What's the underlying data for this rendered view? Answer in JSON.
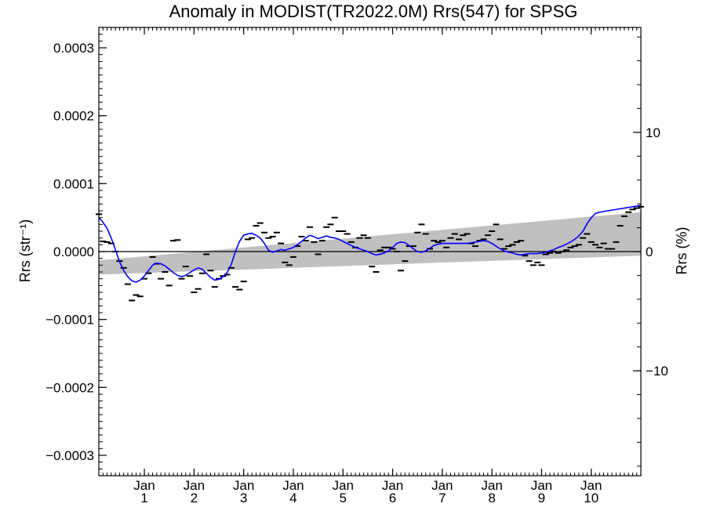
{
  "chart_data": {
    "type": "line",
    "title": "Anomaly in MODIST(TR2022.0M) Rrs(547) for SPSG",
    "ylabel_left": "Rrs (str⁻¹)",
    "ylabel_right": "Rrs (%)",
    "ylim_left": [
      -0.00033,
      0.00033
    ],
    "ylim_right": [
      -18.8,
      18.8
    ],
    "xlim_months": [
      0,
      131
    ],
    "y_ticks_left": [
      {
        "value": 0.0003,
        "label": "0.0003"
      },
      {
        "value": 0.0002,
        "label": "0.0002"
      },
      {
        "value": 0.0001,
        "label": "0.0001"
      },
      {
        "value": 0.0,
        "label": "0.0000"
      },
      {
        "value": -0.0001,
        "label": "−0.0001"
      },
      {
        "value": -0.0002,
        "label": "−0.0002"
      },
      {
        "value": -0.0003,
        "label": "−0.0003"
      }
    ],
    "y_ticks_right": [
      {
        "value": 10,
        "label": "10"
      },
      {
        "value": 0,
        "label": "0"
      },
      {
        "value": -10,
        "label": "−10"
      }
    ],
    "x_ticks": [
      {
        "month": 11,
        "top": "Jan",
        "bottom": "1"
      },
      {
        "month": 23,
        "top": "Jan",
        "bottom": "2"
      },
      {
        "month": 35,
        "top": "Jan",
        "bottom": "3"
      },
      {
        "month": 47,
        "top": "Jan",
        "bottom": "4"
      },
      {
        "month": 59,
        "top": "Jan",
        "bottom": "5"
      },
      {
        "month": 71,
        "top": "Jan",
        "bottom": "6"
      },
      {
        "month": 83,
        "top": "Jan",
        "bottom": "7"
      },
      {
        "month": 95,
        "top": "Jan",
        "bottom": "8"
      },
      {
        "month": 107,
        "top": "Jan",
        "bottom": "9"
      },
      {
        "month": 119,
        "top": "Jan",
        "bottom": "10"
      }
    ],
    "trend_band": {
      "x": [
        0,
        131
      ],
      "upper": [
        -1.3e-05,
        5.8e-05
      ],
      "lower": [
        -3.4e-05,
        -6e-06
      ]
    },
    "zero_line": 0,
    "smoothed_series": {
      "color": "#0000ff",
      "x": [
        0,
        1,
        2,
        3,
        4,
        5,
        6,
        7,
        8,
        9,
        10,
        11,
        12,
        13,
        14,
        15,
        16,
        17,
        18,
        19,
        20,
        21,
        22,
        23,
        24,
        25,
        26,
        27,
        28,
        29,
        30,
        31,
        32,
        33,
        34,
        35,
        36,
        37,
        38,
        39,
        40,
        41,
        42,
        43,
        44,
        45,
        46,
        47,
        48,
        49,
        50,
        51,
        52,
        53,
        54,
        55,
        56,
        57,
        58,
        59,
        60,
        61,
        62,
        63,
        64,
        65,
        66,
        67,
        68,
        69,
        70,
        71,
        72,
        73,
        74,
        75,
        76,
        77,
        78,
        79,
        80,
        81,
        82,
        83,
        84,
        85,
        86,
        87,
        88,
        89,
        90,
        91,
        92,
        93,
        94,
        95,
        96,
        97,
        98,
        99,
        100,
        101,
        102,
        103,
        104,
        105,
        106,
        107,
        108,
        109,
        110,
        111,
        112,
        113,
        114,
        115,
        116,
        117,
        118,
        119,
        120,
        121,
        122,
        123,
        124,
        125,
        126,
        127,
        128,
        129,
        130,
        131
      ],
      "y": [
        5e-05,
        4.3e-05,
        3.4e-05,
        2e-05,
        3e-06,
        -1.5e-05,
        -2.8e-05,
        -3.7e-05,
        -4.3e-05,
        -4.5e-05,
        -4.2e-05,
        -3.6e-05,
        -2.8e-05,
        -2e-05,
        -1.7e-05,
        -1.8e-05,
        -2.1e-05,
        -2.6e-05,
        -3.1e-05,
        -3.5e-05,
        -3.7e-05,
        -3.5e-05,
        -3.1e-05,
        -2.7e-05,
        -2.4e-05,
        -2.6e-05,
        -3.2e-05,
        -3.8e-05,
        -4.2e-05,
        -4.1e-05,
        -3.7e-05,
        -3.1e-05,
        -1.9e-05,
        0.0,
        1.5e-05,
        2.4e-05,
        2.6e-05,
        2.7e-05,
        2.4e-05,
        2e-05,
        1.2e-05,
        2e-06,
        -1e-06,
        1e-06,
        3e-06,
        2e-06,
        4e-06,
        6e-06,
        1e-05,
        1.5e-05,
        2e-05,
        2.4e-05,
        2.2e-05,
        1.9e-05,
        2.1e-05,
        2.3e-05,
        2.1e-05,
        2e-05,
        1.8e-05,
        1.5e-05,
        1.2e-05,
        9e-06,
        6e-06,
        4e-06,
        2e-06,
        0.0,
        -3e-06,
        -5e-06,
        -4e-06,
        -2e-06,
        1e-06,
        6e-06,
        1.2e-05,
        1.4e-05,
        1.3e-05,
        9e-06,
        4e-06,
        0.0,
        -1e-06,
        1e-06,
        5e-06,
        9e-06,
        1.1e-05,
        1.2e-05,
        1.2e-05,
        1.2e-05,
        1.2e-05,
        1.2e-05,
        1.2e-05,
        1.2e-05,
        1.3e-05,
        1.4e-05,
        1.5e-05,
        1.6e-05,
        1.5e-05,
        1.2e-05,
        8e-06,
        4e-06,
        1e-06,
        -1e-06,
        -2e-06,
        -4e-06,
        -5e-06,
        -4e-06,
        -3e-06,
        -3e-06,
        -3e-06,
        -2e-06,
        -1e-06,
        1e-06,
        3e-06,
        6e-06,
        8e-06,
        1.1e-05,
        1.4e-05,
        1.8e-05,
        2.3e-05,
        3e-05,
        4.1e-05,
        5e-05,
        5.6e-05,
        5.8e-05,
        5.9e-05,
        6e-05,
        6.1e-05,
        6.2e-05,
        6.3e-05,
        6.4e-05,
        6.5e-05,
        6.6e-05,
        6.7e-05,
        6.8e-05
      ]
    },
    "monthly_points": {
      "color": "#000000",
      "x": [
        0,
        1,
        2,
        3,
        4,
        5,
        6,
        7,
        8,
        9,
        10,
        11,
        12,
        13,
        14,
        15,
        16,
        17,
        18,
        19,
        20,
        21,
        22,
        23,
        24,
        25,
        26,
        27,
        28,
        29,
        30,
        31,
        32,
        33,
        34,
        35,
        36,
        37,
        38,
        39,
        40,
        41,
        42,
        43,
        44,
        45,
        46,
        47,
        48,
        49,
        50,
        51,
        52,
        53,
        54,
        55,
        56,
        57,
        58,
        59,
        60,
        61,
        62,
        63,
        64,
        65,
        66,
        67,
        68,
        69,
        70,
        71,
        72,
        73,
        74,
        75,
        76,
        77,
        78,
        79,
        80,
        81,
        82,
        83,
        84,
        85,
        86,
        87,
        88,
        89,
        90,
        91,
        92,
        93,
        94,
        95,
        96,
        97,
        98,
        99,
        100,
        101,
        102,
        103,
        104,
        105,
        106,
        107,
        108,
        109,
        110,
        111,
        112,
        113,
        114,
        115,
        116,
        117,
        118,
        119,
        120,
        121,
        122,
        123,
        124,
        125,
        126,
        127,
        128,
        129,
        130,
        131
      ],
      "y": [
        5.5e-05,
        1.5e-05,
        1.4e-05,
        1.2e-05,
        0.0,
        -1.4e-05,
        -2.4e-05,
        -4.8e-05,
        -7.2e-05,
        -6.4e-05,
        -6.6e-05,
        -4e-05,
        -3.2e-05,
        -8e-06,
        -1.8e-05,
        -4e-05,
        -3e-05,
        -5e-05,
        1.6e-05,
        1.7e-05,
        -4e-05,
        -2.2e-05,
        -3.6e-05,
        -6e-05,
        -5.5e-05,
        -3.2e-05,
        -4e-06,
        -2.8e-05,
        -5.2e-05,
        -4e-05,
        -3.6e-05,
        -3.4e-05,
        -2.4e-05,
        -5.2e-05,
        -5.6e-05,
        -4.4e-05,
        1.8e-05,
        2e-05,
        3.8e-05,
        4.2e-05,
        2.8e-05,
        2e-05,
        2.2e-05,
        2.8e-05,
        1.2e-05,
        -1.6e-05,
        -2e-05,
        -8e-06,
        8e-06,
        2.2e-05,
        1.6e-05,
        3.6e-05,
        1.4e-05,
        -4e-06,
        1.6e-05,
        3.6e-05,
        4e-05,
        5e-05,
        3e-05,
        3e-05,
        2.6e-05,
        1.4e-05,
        6e-06,
        2e-05,
        2.4e-05,
        2e-05,
        -2.2e-05,
        -3e-05,
        2e-06,
        6e-06,
        6e-06,
        4e-06,
        0.0,
        -2.8e-05,
        -1.4e-05,
        8e-06,
        8e-06,
        2.8e-05,
        4e-05,
        2.6e-05,
        4e-06,
        1.6e-05,
        1.4e-05,
        1.6e-05,
        6e-06,
        2e-05,
        2.6e-05,
        1.8e-05,
        2.4e-05,
        2.6e-05,
        1.2e-05,
        8e-06,
        1.6e-05,
        1.8e-05,
        2.4e-05,
        3e-05,
        4e-05,
        1.8e-05,
        4e-06,
        8e-06,
        1e-05,
        1.4e-05,
        1.6e-05,
        -6e-06,
        -1.4e-05,
        -2e-05,
        -1.6e-05,
        -2e-05,
        -4e-06,
        -2e-06,
        0.0,
        -2e-06,
        0.0,
        2e-06,
        6e-06,
        8e-06,
        1e-05,
        2e-05,
        2.6e-05,
        1.4e-05,
        1e-05,
        6e-06,
        1.2e-05,
        4e-06,
        4e-06,
        1.4e-05,
        3.8e-05,
        5.2e-05,
        5.8e-05,
        6.2e-05,
        6.4e-05,
        6.6e-05
      ]
    }
  }
}
